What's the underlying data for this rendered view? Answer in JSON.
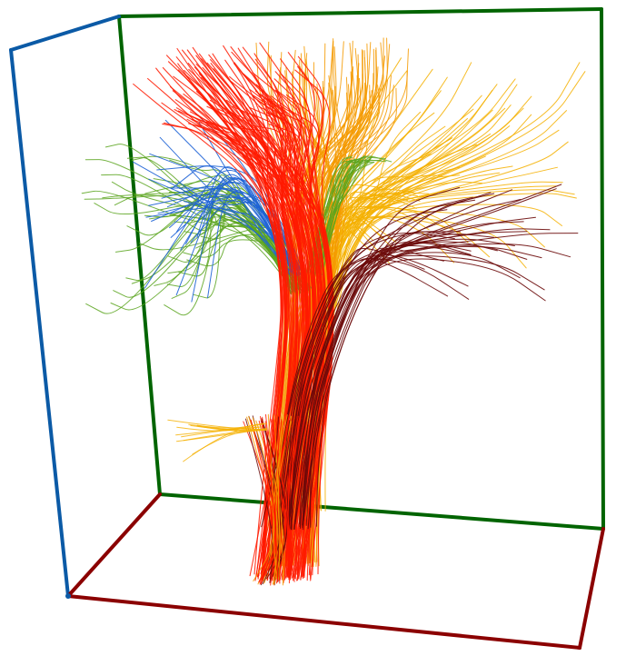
{
  "scene": {
    "kind": "3d-fiber-tractography",
    "background": "#ffffff",
    "bounding_box_colors": {
      "x_axis": "#8b0000",
      "y_axis": "#006400",
      "z_axis": "#0b5aa6"
    },
    "bundles": [
      {
        "name": "blue-fibers",
        "color": "#1e63d6"
      },
      {
        "name": "green-fibers",
        "color": "#5aa51e"
      },
      {
        "name": "orange-fibers",
        "color": "#f59a00"
      },
      {
        "name": "yellow-fibers",
        "color": "#f5b000"
      },
      {
        "name": "red-fibers",
        "color": "#ff1a00"
      },
      {
        "name": "dark-red-fibers",
        "color": "#6b0a0a"
      }
    ]
  }
}
